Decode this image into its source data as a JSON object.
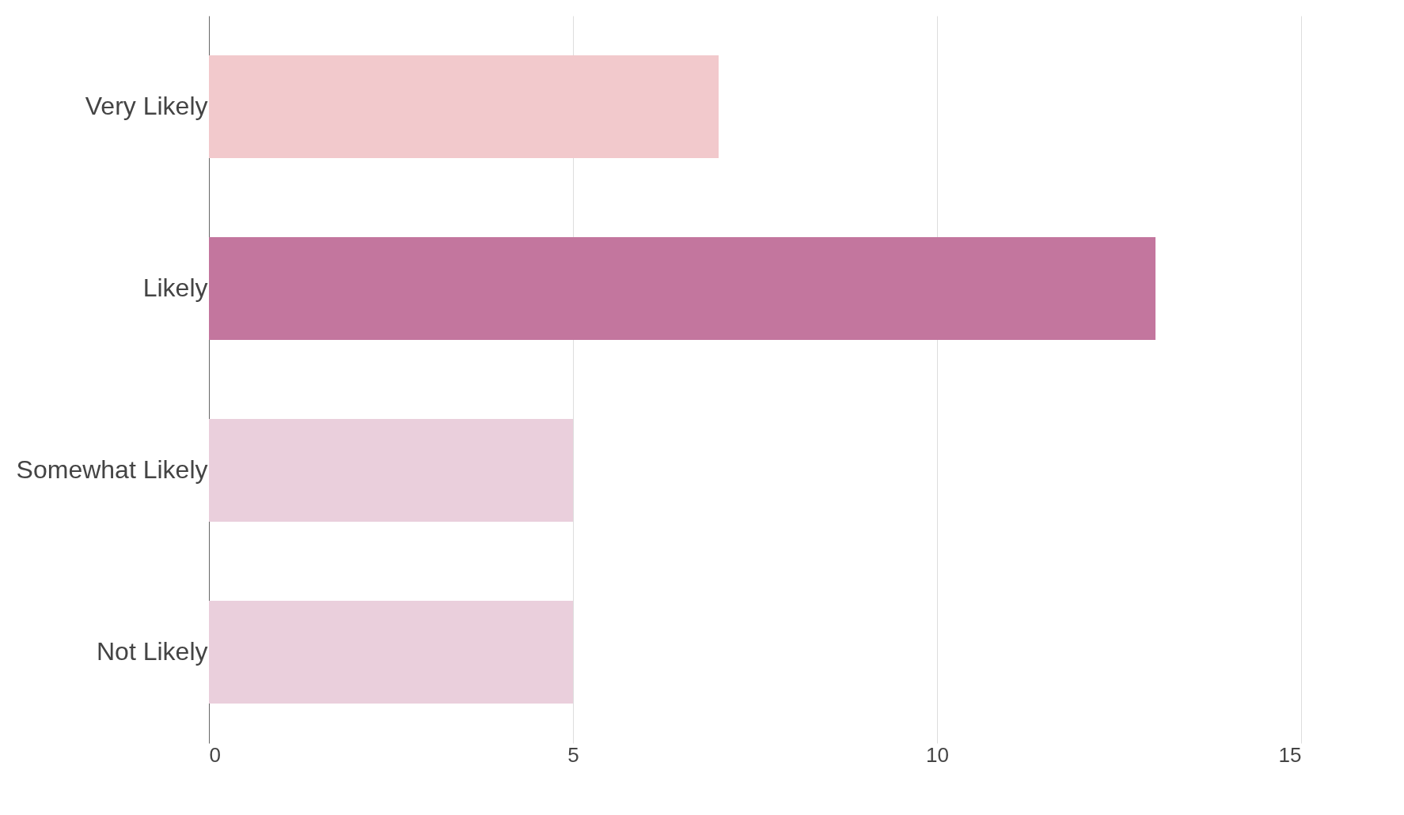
{
  "chart_data": {
    "type": "bar",
    "orientation": "horizontal",
    "categories": [
      "Very Likely",
      "Likely",
      "Somewhat Likely",
      "Not Likely"
    ],
    "values": [
      7,
      13,
      5,
      5
    ],
    "colors": [
      "#f2c9cc",
      "#c3769e",
      "#eacfdc",
      "#eacfdc"
    ],
    "xlim": [
      0,
      15
    ],
    "xticks": [
      0,
      5,
      10,
      15
    ],
    "grid": "x"
  }
}
